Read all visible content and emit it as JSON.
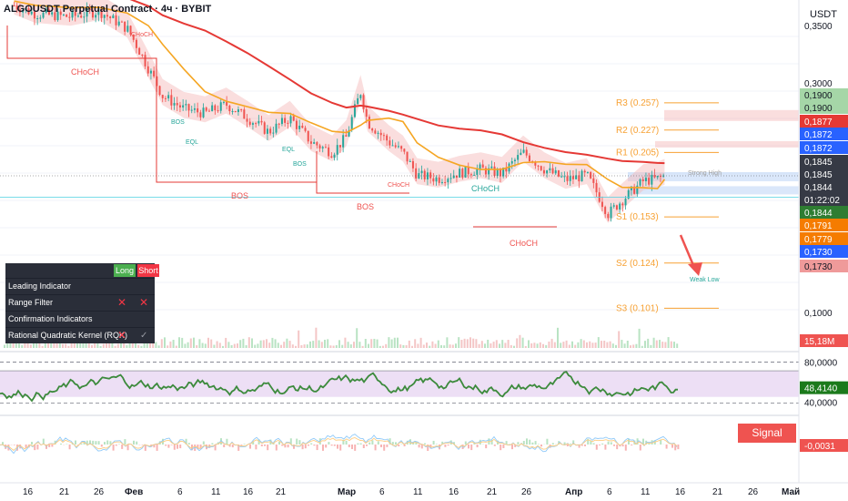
{
  "header": {
    "title": "ALGOUSDT Perpetual Contract · 4ч · BYBIT",
    "currency": "USDT"
  },
  "price_scale": {
    "labels": [
      {
        "text": "0,3500",
        "y": 0.35,
        "style": "plain"
      },
      {
        "text": "0,3000",
        "y": 0.3,
        "style": "plain"
      },
      {
        "text": "0,1900",
        "y": 0.19,
        "style": "green"
      },
      {
        "text": "0,1900",
        "y": 0.19,
        "style": "green"
      },
      {
        "text": "0,1877",
        "y": 0.1877,
        "style": "red"
      },
      {
        "text": "0,1872",
        "y": 0.1872,
        "style": "blue"
      },
      {
        "text": "0,1872",
        "y": 0.1872,
        "style": "blue"
      },
      {
        "text": "0,1845",
        "y": 0.1845,
        "style": "dark"
      },
      {
        "text": "0,1845",
        "y": 0.1845,
        "style": "dark"
      },
      {
        "text": "0,1844",
        "y": 0.1844,
        "style": "dark"
      },
      {
        "text": "01:22:02",
        "y": 0.1844,
        "style": "dark"
      },
      {
        "text": "0,1844",
        "y": 0.1844,
        "style": "green"
      },
      {
        "text": "0,1791",
        "y": 0.1791,
        "style": "orange"
      },
      {
        "text": "0,1779",
        "y": 0.1779,
        "style": "orange"
      },
      {
        "text": "0,1730",
        "y": 0.173,
        "style": "blue"
      },
      {
        "text": "0,1730",
        "y": 0.173,
        "style": "pink"
      },
      {
        "text": "0,1000",
        "y": 0.1,
        "style": "plain"
      }
    ],
    "volume_label": "15,18M",
    "rsi_labels": {
      "upper": "80,0000",
      "value": "48,4140",
      "lower": "40,0000"
    },
    "macd_label": "-0,0031"
  },
  "time_axis": {
    "ticks": [
      "16",
      "21",
      "26",
      "Фев",
      "6",
      "11",
      "16",
      "21",
      "Мар",
      "6",
      "11",
      "16",
      "21",
      "26",
      "Апр",
      "6",
      "11",
      "16",
      "21",
      "26",
      "Май"
    ]
  },
  "pivots": [
    {
      "label": "R3 (0.257)",
      "value": 0.257
    },
    {
      "label": "R2 (0.227)",
      "value": 0.227
    },
    {
      "label": "R1 (0.205)",
      "value": 0.205
    },
    {
      "label": "S1 (0.153)",
      "value": 0.153
    },
    {
      "label": "S2 (0.124)",
      "value": 0.124
    },
    {
      "label": "S3 (0.101)",
      "value": 0.101
    }
  ],
  "annotations": {
    "choch": "CHoCH",
    "bos": "BOS",
    "eql": "EQL",
    "strong_high": "Strong High",
    "weak_low": "Weak Low"
  },
  "signal_table": {
    "col_long": "Long",
    "col_short": "Short",
    "rows": [
      {
        "label": "Leading Indicator",
        "long": "",
        "short": ""
      },
      {
        "label": "Range Filter",
        "long": "✕",
        "short": "✕"
      },
      {
        "label": "Confirmation Indicators",
        "long": "",
        "short": ""
      },
      {
        "label": "Rational Quadratic Kernel (RQK)",
        "long": "✕",
        "short": "✓"
      }
    ]
  },
  "signal_cross_label": "Signal Cross",
  "colors": {
    "up": "#26a69a",
    "down": "#ef5350",
    "ma_red": "#e53935",
    "ma_orange": "#f5a623",
    "cloud_red": "#f4b6b6",
    "cloud_green": "#b9e3c3",
    "rsi": "#3c8a3c",
    "rsi_band": "#e1c9ee",
    "pivot": "#f7a133"
  },
  "chart_data": [
    {
      "type": "candlestick",
      "title": "ALGOUSDT Perpetual Contract · 4ч · BYBIT",
      "ylabel": "USDT",
      "scale": "log",
      "ylim": [
        0.085,
        0.4
      ],
      "x_range": [
        "Jan 12",
        "May 4"
      ],
      "close_path": [
        {
          "date": "Jan 14",
          "close": 0.4
        },
        {
          "date": "Jan 17",
          "close": 0.385
        },
        {
          "date": "Jan 22",
          "close": 0.38
        },
        {
          "date": "Jan 26",
          "close": 0.39
        },
        {
          "date": "Jan 30",
          "close": 0.36
        },
        {
          "date": "Feb 2",
          "close": 0.3
        },
        {
          "date": "Feb 4",
          "close": 0.265
        },
        {
          "date": "Feb 7",
          "close": 0.25
        },
        {
          "date": "Feb 10",
          "close": 0.245
        },
        {
          "date": "Feb 13",
          "close": 0.255
        },
        {
          "date": "Feb 16",
          "close": 0.24
        },
        {
          "date": "Feb 19",
          "close": 0.225
        },
        {
          "date": "Feb 22",
          "close": 0.24
        },
        {
          "date": "Feb 25",
          "close": 0.215
        },
        {
          "date": "Feb 28",
          "close": 0.205
        },
        {
          "date": "Mar 1",
          "close": 0.22
        },
        {
          "date": "Mar 3",
          "close": 0.27
        },
        {
          "date": "Mar 4",
          "close": 0.235
        },
        {
          "date": "Mar 7",
          "close": 0.215
        },
        {
          "date": "Mar 9",
          "close": 0.205
        },
        {
          "date": "Mar 11",
          "close": 0.185
        },
        {
          "date": "Mar 14",
          "close": 0.182
        },
        {
          "date": "Mar 17",
          "close": 0.187
        },
        {
          "date": "Mar 20",
          "close": 0.19
        },
        {
          "date": "Mar 23",
          "close": 0.186
        },
        {
          "date": "Mar 26",
          "close": 0.205
        },
        {
          "date": "Mar 29",
          "close": 0.19
        },
        {
          "date": "Apr 1",
          "close": 0.181
        },
        {
          "date": "Apr 4",
          "close": 0.185
        },
        {
          "date": "Apr 7",
          "close": 0.155
        },
        {
          "date": "Apr 9",
          "close": 0.165
        },
        {
          "date": "Apr 12",
          "close": 0.18
        },
        {
          "date": "Apr 14",
          "close": 0.182
        },
        {
          "date": "Apr 15",
          "close": 0.1844
        }
      ],
      "series": [
        {
          "name": "",
          "color": "#e53935",
          "values_hint": "long MA descending from 0.39 to 0.18"
        },
        {
          "name": "",
          "color": "#f5a623",
          "values_hint": "short MA descending from 0.35 to 0.178"
        }
      ]
    },
    {
      "type": "line",
      "ylim": [
        25,
        90
      ],
      "levels": [
        80,
        70,
        40
      ],
      "last": 48.414
    },
    {
      "type": "bar",
      "last": -0.0031
    }
  ]
}
